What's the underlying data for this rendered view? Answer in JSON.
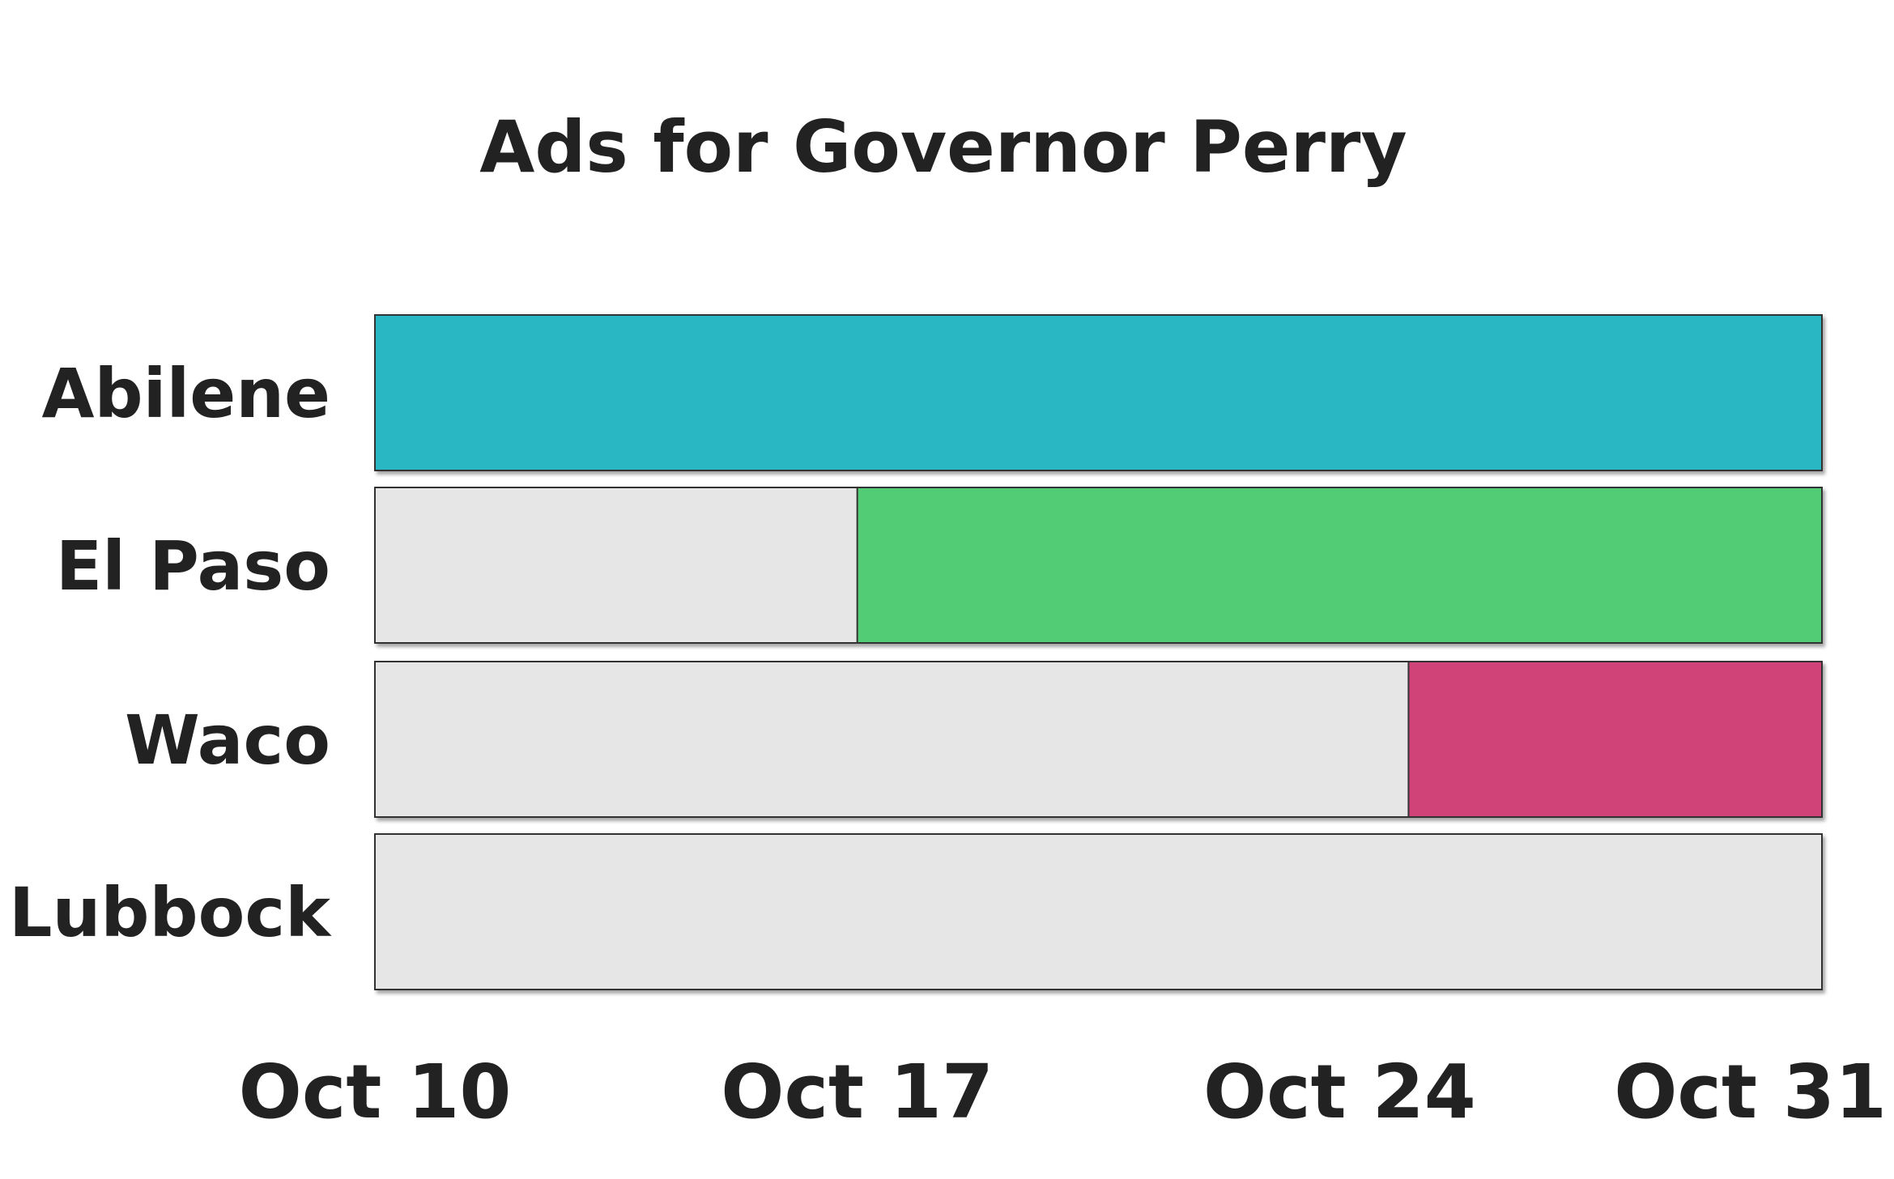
{
  "chart_data": {
    "type": "bar",
    "title": "Ads for Governor Perry",
    "categories": [
      "Abilene",
      "El Paso",
      "Waco",
      "Lubbock"
    ],
    "x_ticks": [
      "Oct 10",
      "Oct 17",
      "Oct 24",
      "Oct 31"
    ],
    "xlim": [
      "Oct 10",
      "Oct 31"
    ],
    "bars": [
      {
        "category": "Abilene",
        "start": "Oct 10",
        "end": "Oct 31",
        "color": "#29b8c3"
      },
      {
        "category": "El Paso",
        "start": "Oct 17",
        "end": "Oct 31",
        "color": "#52cc75"
      },
      {
        "category": "Waco",
        "start": "Oct 25",
        "end": "Oct 31",
        "color": "#d04379"
      },
      {
        "category": "Lubbock",
        "start": null,
        "end": null,
        "color": null
      }
    ],
    "background_color": "#e6e6e6",
    "legend": "none",
    "grid": false
  }
}
